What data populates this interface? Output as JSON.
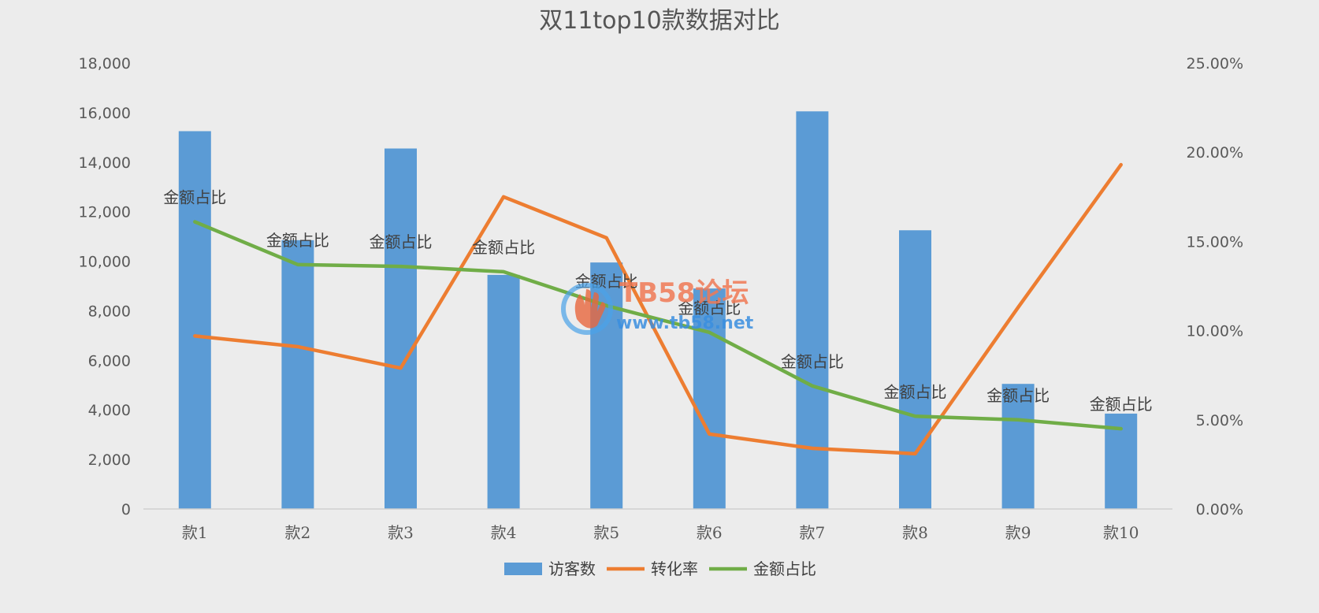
{
  "chart_data": {
    "type": "bar",
    "title": "双11top10款数据对比",
    "categories": [
      "款1",
      "款2",
      "款3",
      "款4",
      "款5",
      "款6",
      "款7",
      "款8",
      "款9",
      "款10"
    ],
    "left_axis": {
      "ylim": [
        0,
        18000
      ],
      "ticks": [
        0,
        2000,
        4000,
        6000,
        8000,
        10000,
        12000,
        14000,
        16000,
        18000
      ],
      "tick_labels": [
        "0",
        "2,000",
        "4,000",
        "6,000",
        "8,000",
        "10,000",
        "12,000",
        "14,000",
        "16,000",
        "18,000"
      ]
    },
    "right_axis": {
      "ylim": [
        0,
        0.25
      ],
      "ticks": [
        0,
        0.05,
        0.1,
        0.15,
        0.2,
        0.25
      ],
      "tick_labels": [
        "0.00%",
        "5.00%",
        "10.00%",
        "15.00%",
        "20.00%",
        "25.00%"
      ]
    },
    "series": [
      {
        "name": "访客数",
        "kind": "bar",
        "axis": "left",
        "color": "#5b9bd5",
        "values": [
          15250,
          10850,
          14550,
          9450,
          9950,
          8900,
          16050,
          11250,
          5050,
          3850
        ]
      },
      {
        "name": "转化率",
        "kind": "line",
        "axis": "right",
        "color": "#ed7d31",
        "values": [
          0.097,
          0.091,
          0.079,
          0.175,
          0.152,
          0.042,
          0.034,
          0.031,
          0.113,
          0.193
        ]
      },
      {
        "name": "金额占比",
        "kind": "line",
        "axis": "right",
        "color": "#70ad47",
        "values": [
          0.161,
          0.137,
          0.136,
          0.133,
          0.114,
          0.099,
          0.069,
          0.052,
          0.05,
          0.045
        ],
        "data_labels": [
          "金额占比",
          "金额占比",
          "金额占比",
          "金额占比",
          "金额占比",
          "金额占比",
          "金额占比",
          "金额占比",
          "金额占比",
          "金额占比"
        ]
      }
    ],
    "legend": {
      "position": "bottom",
      "entries": [
        "访客数",
        "转化率",
        "金额占比"
      ]
    },
    "grid": false
  },
  "watermark": {
    "title": "TB58论坛",
    "url": "www.tb58.net",
    "icon": "hand-logo-icon"
  }
}
